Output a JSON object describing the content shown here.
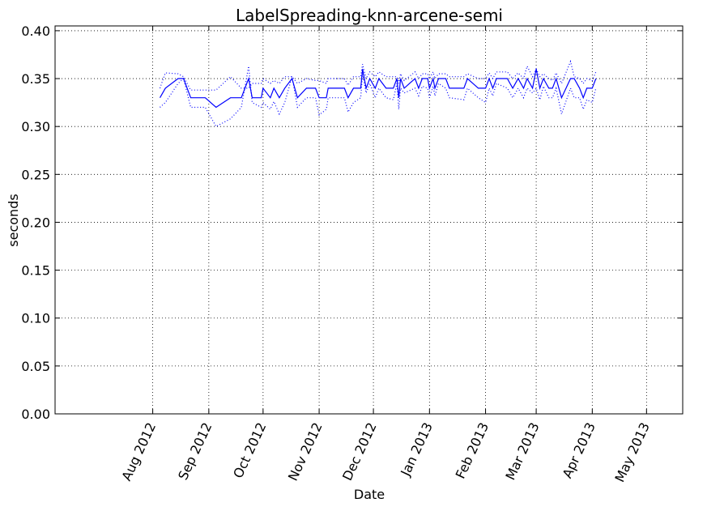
{
  "chart_data": {
    "type": "line",
    "title": "LabelSpreading-knn-arcene-semi",
    "xlabel": "Date",
    "ylabel": "seconds",
    "x_axis_kind": "date",
    "xlim": [
      "2012-06-08",
      "2013-05-21"
    ],
    "ylim": [
      0.0,
      0.405
    ],
    "grid": true,
    "line_color": "#0000ff",
    "x_ticks": [
      {
        "date": "2012-08-01",
        "label": "Aug 2012"
      },
      {
        "date": "2012-09-01",
        "label": "Sep 2012"
      },
      {
        "date": "2012-10-01",
        "label": "Oct 2012"
      },
      {
        "date": "2012-11-01",
        "label": "Nov 2012"
      },
      {
        "date": "2012-12-01",
        "label": "Dec 2012"
      },
      {
        "date": "2013-01-01",
        "label": "Jan 2013"
      },
      {
        "date": "2013-02-01",
        "label": "Feb 2013"
      },
      {
        "date": "2013-03-01",
        "label": "Mar 2013"
      },
      {
        "date": "2013-04-01",
        "label": "Apr 2013"
      },
      {
        "date": "2013-05-01",
        "label": "May 2013"
      }
    ],
    "y_ticks": [
      {
        "value": 0.0,
        "label": "0.00"
      },
      {
        "value": 0.05,
        "label": "0.05"
      },
      {
        "value": 0.1,
        "label": "0.10"
      },
      {
        "value": 0.15,
        "label": "0.15"
      },
      {
        "value": 0.2,
        "label": "0.20"
      },
      {
        "value": 0.25,
        "label": "0.25"
      },
      {
        "value": 0.3,
        "label": "0.30"
      },
      {
        "value": 0.35,
        "label": "0.35"
      },
      {
        "value": 0.4,
        "label": "0.40"
      }
    ],
    "series": [
      {
        "style": "solid",
        "points": [
          [
            "2012-08-05",
            0.33
          ],
          [
            "2012-08-08",
            0.34
          ],
          [
            "2012-08-15",
            0.35
          ],
          [
            "2012-08-18",
            0.35
          ],
          [
            "2012-08-22",
            0.33
          ],
          [
            "2012-08-30",
            0.33
          ],
          [
            "2012-09-05",
            0.32
          ],
          [
            "2012-09-13",
            0.33
          ],
          [
            "2012-09-19",
            0.33
          ],
          [
            "2012-09-23",
            0.35
          ],
          [
            "2012-09-25",
            0.33
          ],
          [
            "2012-09-30",
            0.33
          ],
          [
            "2012-10-01",
            0.34
          ],
          [
            "2012-10-05",
            0.33
          ],
          [
            "2012-10-07",
            0.34
          ],
          [
            "2012-10-10",
            0.33
          ],
          [
            "2012-10-13",
            0.34
          ],
          [
            "2012-10-17",
            0.35
          ],
          [
            "2012-10-20",
            0.33
          ],
          [
            "2012-10-25",
            0.34
          ],
          [
            "2012-10-30",
            0.34
          ],
          [
            "2012-11-01",
            0.33
          ],
          [
            "2012-11-05",
            0.33
          ],
          [
            "2012-11-06",
            0.34
          ],
          [
            "2012-11-15",
            0.34
          ],
          [
            "2012-11-17",
            0.33
          ],
          [
            "2012-11-20",
            0.34
          ],
          [
            "2012-11-24",
            0.34
          ],
          [
            "2012-11-25",
            0.36
          ],
          [
            "2012-11-27",
            0.34
          ],
          [
            "2012-11-29",
            0.35
          ],
          [
            "2012-12-02",
            0.34
          ],
          [
            "2012-12-04",
            0.35
          ],
          [
            "2012-12-08",
            0.34
          ],
          [
            "2012-12-12",
            0.34
          ],
          [
            "2012-12-14",
            0.35
          ],
          [
            "2012-12-15",
            0.33
          ],
          [
            "2012-12-16",
            0.35
          ],
          [
            "2012-12-18",
            0.34
          ],
          [
            "2012-12-24",
            0.35
          ],
          [
            "2012-12-26",
            0.34
          ],
          [
            "2012-12-28",
            0.35
          ],
          [
            "2012-12-31",
            0.35
          ],
          [
            "2013-01-01",
            0.34
          ],
          [
            "2013-01-03",
            0.35
          ],
          [
            "2013-01-04",
            0.34
          ],
          [
            "2013-01-06",
            0.35
          ],
          [
            "2013-01-10",
            0.35
          ],
          [
            "2013-01-12",
            0.34
          ],
          [
            "2013-01-20",
            0.34
          ],
          [
            "2013-01-22",
            0.35
          ],
          [
            "2013-01-28",
            0.34
          ],
          [
            "2013-02-01",
            0.34
          ],
          [
            "2013-02-03",
            0.35
          ],
          [
            "2013-02-05",
            0.34
          ],
          [
            "2013-02-07",
            0.35
          ],
          [
            "2013-02-13",
            0.35
          ],
          [
            "2013-02-16",
            0.34
          ],
          [
            "2013-02-19",
            0.35
          ],
          [
            "2013-02-22",
            0.34
          ],
          [
            "2013-02-24",
            0.35
          ],
          [
            "2013-02-27",
            0.34
          ],
          [
            "2013-03-01",
            0.36
          ],
          [
            "2013-03-03",
            0.34
          ],
          [
            "2013-03-05",
            0.35
          ],
          [
            "2013-03-08",
            0.34
          ],
          [
            "2013-03-10",
            0.34
          ],
          [
            "2013-03-12",
            0.35
          ],
          [
            "2013-03-15",
            0.33
          ],
          [
            "2013-03-20",
            0.35
          ],
          [
            "2013-03-22",
            0.35
          ],
          [
            "2013-03-25",
            0.34
          ],
          [
            "2013-03-27",
            0.33
          ],
          [
            "2013-03-29",
            0.34
          ],
          [
            "2013-04-01",
            0.34
          ],
          [
            "2013-04-03",
            0.35
          ]
        ]
      },
      {
        "style": "dotted",
        "points": [
          [
            "2012-08-05",
            0.32
          ],
          [
            "2012-08-08",
            0.325
          ],
          [
            "2012-08-15",
            0.345
          ],
          [
            "2012-08-18",
            0.35
          ],
          [
            "2012-08-22",
            0.32
          ],
          [
            "2012-08-30",
            0.32
          ],
          [
            "2012-09-05",
            0.3
          ],
          [
            "2012-09-13",
            0.308
          ],
          [
            "2012-09-19",
            0.32
          ],
          [
            "2012-09-23",
            0.363
          ],
          [
            "2012-09-25",
            0.325
          ],
          [
            "2012-09-30",
            0.32
          ],
          [
            "2012-10-01",
            0.325
          ],
          [
            "2012-10-05",
            0.318
          ],
          [
            "2012-10-07",
            0.326
          ],
          [
            "2012-10-10",
            0.313
          ],
          [
            "2012-10-13",
            0.325
          ],
          [
            "2012-10-17",
            0.352
          ],
          [
            "2012-10-20",
            0.32
          ],
          [
            "2012-10-25",
            0.33
          ],
          [
            "2012-10-30",
            0.33
          ],
          [
            "2012-11-01",
            0.312
          ],
          [
            "2012-11-05",
            0.318
          ],
          [
            "2012-11-06",
            0.33
          ],
          [
            "2012-11-15",
            0.33
          ],
          [
            "2012-11-17",
            0.315
          ],
          [
            "2012-11-20",
            0.325
          ],
          [
            "2012-11-24",
            0.33
          ],
          [
            "2012-11-25",
            0.355
          ],
          [
            "2012-11-27",
            0.335
          ],
          [
            "2012-11-29",
            0.345
          ],
          [
            "2012-12-02",
            0.33
          ],
          [
            "2012-12-04",
            0.34
          ],
          [
            "2012-12-08",
            0.33
          ],
          [
            "2012-12-12",
            0.328
          ],
          [
            "2012-12-14",
            0.345
          ],
          [
            "2012-12-15",
            0.318
          ],
          [
            "2012-12-16",
            0.34
          ],
          [
            "2012-12-18",
            0.335
          ],
          [
            "2012-12-24",
            0.34
          ],
          [
            "2012-12-26",
            0.332
          ],
          [
            "2012-12-28",
            0.342
          ],
          [
            "2012-12-31",
            0.34
          ],
          [
            "2013-01-01",
            0.33
          ],
          [
            "2013-01-03",
            0.342
          ],
          [
            "2013-01-04",
            0.332
          ],
          [
            "2013-01-06",
            0.345
          ],
          [
            "2013-01-10",
            0.34
          ],
          [
            "2013-01-12",
            0.33
          ],
          [
            "2013-01-20",
            0.328
          ],
          [
            "2013-01-22",
            0.34
          ],
          [
            "2013-01-28",
            0.33
          ],
          [
            "2013-02-01",
            0.325
          ],
          [
            "2013-02-03",
            0.34
          ],
          [
            "2013-02-05",
            0.332
          ],
          [
            "2013-02-07",
            0.345
          ],
          [
            "2013-02-13",
            0.34
          ],
          [
            "2013-02-16",
            0.33
          ],
          [
            "2013-02-19",
            0.34
          ],
          [
            "2013-02-22",
            0.33
          ],
          [
            "2013-02-24",
            0.34
          ],
          [
            "2013-02-27",
            0.335
          ],
          [
            "2013-03-01",
            0.34
          ],
          [
            "2013-03-03",
            0.328
          ],
          [
            "2013-03-05",
            0.342
          ],
          [
            "2013-03-08",
            0.33
          ],
          [
            "2013-03-10",
            0.33
          ],
          [
            "2013-03-12",
            0.34
          ],
          [
            "2013-03-15",
            0.313
          ],
          [
            "2013-03-20",
            0.34
          ],
          [
            "2013-03-22",
            0.33
          ],
          [
            "2013-03-25",
            0.33
          ],
          [
            "2013-03-27",
            0.318
          ],
          [
            "2013-03-29",
            0.328
          ],
          [
            "2013-04-01",
            0.325
          ],
          [
            "2013-04-03",
            0.34
          ]
        ]
      },
      {
        "style": "dotted",
        "points": [
          [
            "2012-08-05",
            0.34
          ],
          [
            "2012-08-08",
            0.356
          ],
          [
            "2012-08-15",
            0.355
          ],
          [
            "2012-08-18",
            0.352
          ],
          [
            "2012-08-22",
            0.338
          ],
          [
            "2012-08-30",
            0.338
          ],
          [
            "2012-09-05",
            0.338
          ],
          [
            "2012-09-13",
            0.352
          ],
          [
            "2012-09-19",
            0.34
          ],
          [
            "2012-09-23",
            0.34
          ],
          [
            "2012-09-25",
            0.345
          ],
          [
            "2012-09-30",
            0.345
          ],
          [
            "2012-10-01",
            0.35
          ],
          [
            "2012-10-05",
            0.345
          ],
          [
            "2012-10-07",
            0.348
          ],
          [
            "2012-10-10",
            0.345
          ],
          [
            "2012-10-13",
            0.352
          ],
          [
            "2012-10-17",
            0.352
          ],
          [
            "2012-10-20",
            0.345
          ],
          [
            "2012-10-25",
            0.35
          ],
          [
            "2012-10-30",
            0.348
          ],
          [
            "2012-11-01",
            0.348
          ],
          [
            "2012-11-05",
            0.345
          ],
          [
            "2012-11-06",
            0.35
          ],
          [
            "2012-11-15",
            0.35
          ],
          [
            "2012-11-17",
            0.343
          ],
          [
            "2012-11-20",
            0.352
          ],
          [
            "2012-11-24",
            0.352
          ],
          [
            "2012-11-25",
            0.365
          ],
          [
            "2012-11-27",
            0.35
          ],
          [
            "2012-11-29",
            0.357
          ],
          [
            "2012-12-02",
            0.352
          ],
          [
            "2012-12-04",
            0.357
          ],
          [
            "2012-12-08",
            0.352
          ],
          [
            "2012-12-12",
            0.352
          ],
          [
            "2012-12-14",
            0.352
          ],
          [
            "2012-12-15",
            0.345
          ],
          [
            "2012-12-16",
            0.355
          ],
          [
            "2012-12-18",
            0.348
          ],
          [
            "2012-12-24",
            0.357
          ],
          [
            "2012-12-26",
            0.35
          ],
          [
            "2012-12-28",
            0.355
          ],
          [
            "2012-12-31",
            0.355
          ],
          [
            "2013-01-01",
            0.35
          ],
          [
            "2013-01-03",
            0.357
          ],
          [
            "2013-01-04",
            0.35
          ],
          [
            "2013-01-06",
            0.355
          ],
          [
            "2013-01-10",
            0.355
          ],
          [
            "2013-01-12",
            0.352
          ],
          [
            "2013-01-20",
            0.352
          ],
          [
            "2013-01-22",
            0.355
          ],
          [
            "2013-01-28",
            0.35
          ],
          [
            "2013-02-01",
            0.35
          ],
          [
            "2013-02-03",
            0.356
          ],
          [
            "2013-02-05",
            0.35
          ],
          [
            "2013-02-07",
            0.357
          ],
          [
            "2013-02-13",
            0.357
          ],
          [
            "2013-02-16",
            0.35
          ],
          [
            "2013-02-19",
            0.356
          ],
          [
            "2013-02-22",
            0.35
          ],
          [
            "2013-02-24",
            0.363
          ],
          [
            "2013-02-27",
            0.352
          ],
          [
            "2013-03-01",
            0.36
          ],
          [
            "2013-03-03",
            0.352
          ],
          [
            "2013-03-05",
            0.355
          ],
          [
            "2013-03-08",
            0.35
          ],
          [
            "2013-03-10",
            0.348
          ],
          [
            "2013-03-12",
            0.356
          ],
          [
            "2013-03-15",
            0.345
          ],
          [
            "2013-03-20",
            0.368
          ],
          [
            "2013-03-22",
            0.352
          ],
          [
            "2013-03-25",
            0.35
          ],
          [
            "2013-03-27",
            0.345
          ],
          [
            "2013-03-29",
            0.35
          ],
          [
            "2013-04-01",
            0.348
          ],
          [
            "2013-04-03",
            0.357
          ]
        ]
      }
    ]
  }
}
